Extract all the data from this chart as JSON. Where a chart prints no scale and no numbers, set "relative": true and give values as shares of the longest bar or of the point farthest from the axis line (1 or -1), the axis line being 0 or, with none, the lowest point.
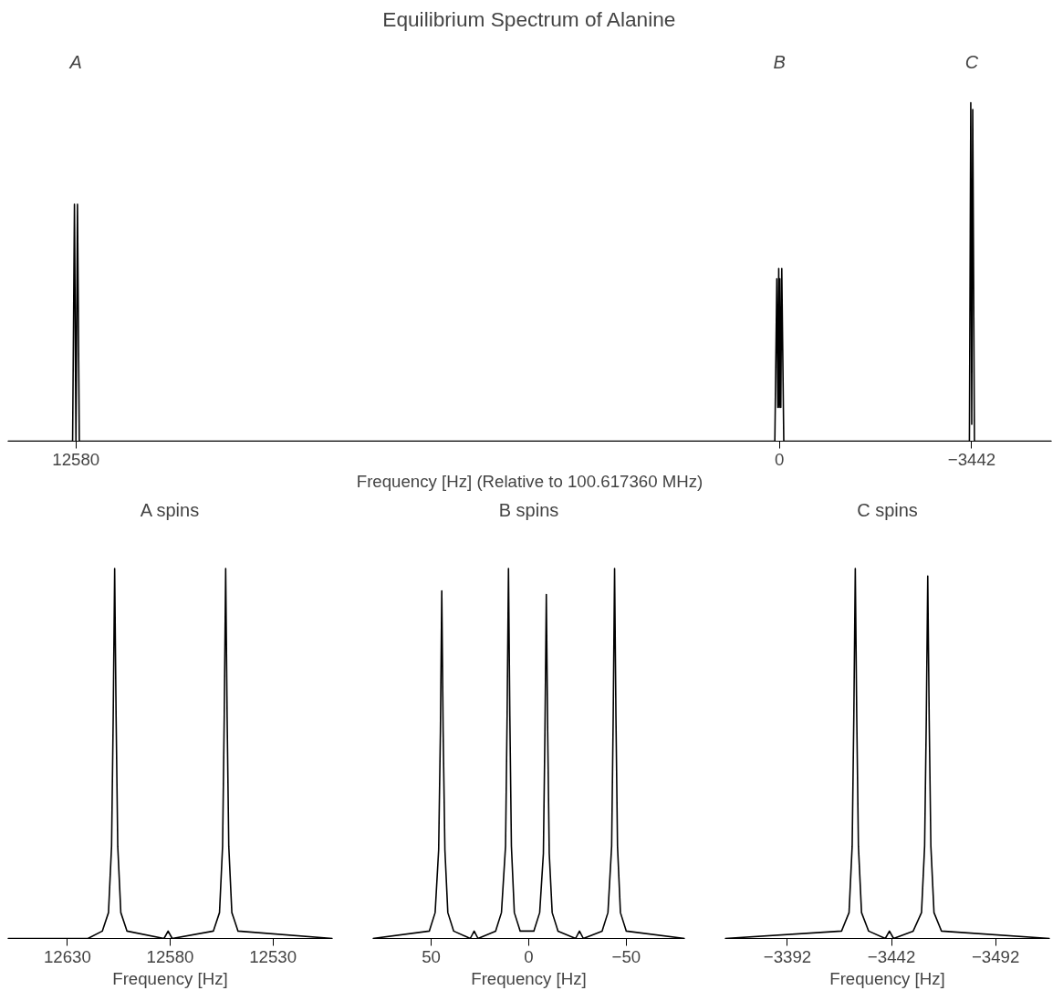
{
  "chart_data": [
    {
      "type": "line",
      "title": "Equilibrium Spectrum of Alanine",
      "xlabel": "Frequency [Hz] (Relative to 100.617360 MHz)",
      "relative": true,
      "tick_labels": "x",
      "grid": false,
      "xlim": [
        13800,
        -4870
      ],
      "xticks": [
        12580,
        0,
        {
          "value": -3442,
          "label": "−3442"
        }
      ],
      "annotations": [
        "A",
        "B",
        "C"
      ],
      "series": [
        {
          "color": "#000000",
          "x": [
            13800,
            12640,
            12607,
            12580,
            12553,
            12520,
            80,
            44.6,
            27,
            10.4,
            0,
            -9,
            -27,
            -44,
            -80,
            -3400,
            -3424.6,
            -3442,
            -3459.4,
            -3490,
            -4870
          ],
          "values": [
            0,
            0,
            0.7,
            0,
            0.7,
            0,
            0,
            0.48,
            0.1,
            0.51,
            0.1,
            0.48,
            0.1,
            0.51,
            0,
            0,
            1,
            0.05,
            0.98,
            0,
            0
          ]
        }
      ]
    },
    {
      "type": "line",
      "title": "A spins",
      "xlabel": "Frequency [Hz]",
      "relative": true,
      "tick_labels": "x",
      "grid": false,
      "xlim": [
        12659,
        12501
      ],
      "xticks": [
        12630,
        12580,
        12530
      ],
      "series": [
        {
          "color": "#000000",
          "x": [
            12659,
            12620,
            12613,
            12610,
            12608.5,
            12607.7,
            12607,
            12606.3,
            12605.5,
            12604,
            12601,
            12583,
            12581,
            12579,
            12559,
            12556,
            12554.5,
            12553.7,
            12553,
            12552.3,
            12551.5,
            12550,
            12547,
            12501
          ],
          "values": [
            0,
            0,
            0.02,
            0.07,
            0.25,
            0.6,
            1,
            0.6,
            0.25,
            0.07,
            0.02,
            0,
            0.02,
            0,
            0.02,
            0.07,
            0.25,
            0.6,
            1,
            0.6,
            0.25,
            0.07,
            0.02,
            0
          ]
        }
      ]
    },
    {
      "type": "line",
      "title": "B spins",
      "xlabel": "Frequency [Hz]",
      "relative": true,
      "tick_labels": "x",
      "grid": false,
      "xlim": [
        80,
        -80
      ],
      "xticks": [
        50,
        0,
        {
          "value": -50,
          "label": "−50"
        }
      ],
      "series": [
        {
          "color": "#000000",
          "x": [
            80,
            51,
            48,
            46.2,
            45.3,
            44.6,
            43.9,
            43,
            41.5,
            38.5,
            30,
            28,
            26,
            17,
            14,
            11.9,
            11.1,
            10.4,
            9.7,
            8.9,
            7.4,
            4.4,
            -2.6,
            -5.6,
            -7.5,
            -8.3,
            -9,
            -9.7,
            -10.5,
            -12,
            -15,
            -24,
            -26,
            -28,
            -37.6,
            -40.6,
            -42.5,
            -43.3,
            -44,
            -44.7,
            -45.5,
            -47,
            -50,
            -80
          ],
          "values": [
            0,
            0.02,
            0.07,
            0.24,
            0.56,
            0.94,
            0.56,
            0.24,
            0.07,
            0.02,
            0,
            0.02,
            0,
            0.02,
            0.07,
            0.25,
            0.6,
            1,
            0.6,
            0.25,
            0.07,
            0.02,
            0.02,
            0.07,
            0.23,
            0.56,
            0.93,
            0.56,
            0.23,
            0.07,
            0.02,
            0,
            0.02,
            0,
            0.02,
            0.07,
            0.25,
            0.6,
            1,
            0.6,
            0.25,
            0.07,
            0.02,
            0
          ]
        }
      ]
    },
    {
      "type": "line",
      "title": "C spins",
      "xlabel": "Frequency [Hz]",
      "relative": true,
      "tick_labels": "x",
      "grid": false,
      "xlim": [
        -3362,
        -3518
      ],
      "xticks": [
        {
          "value": -3392,
          "label": "−3392"
        },
        {
          "value": -3442,
          "label": "−3442"
        },
        {
          "value": -3492,
          "label": "−3492"
        }
      ],
      "series": [
        {
          "color": "#000000",
          "x": [
            -3362,
            -3418,
            -3421.6,
            -3423.1,
            -3423.9,
            -3424.6,
            -3425.3,
            -3426.1,
            -3427.6,
            -3431,
            -3439,
            -3441,
            -3443,
            -3452.4,
            -3456.4,
            -3457.9,
            -3458.7,
            -3459.4,
            -3460.1,
            -3460.9,
            -3462.4,
            -3466,
            -3518
          ],
          "values": [
            0,
            0.02,
            0.07,
            0.25,
            0.6,
            1,
            0.6,
            0.25,
            0.07,
            0.02,
            0,
            0.02,
            0,
            0.02,
            0.07,
            0.25,
            0.59,
            0.98,
            0.59,
            0.25,
            0.07,
            0.02,
            0
          ]
        }
      ]
    }
  ]
}
